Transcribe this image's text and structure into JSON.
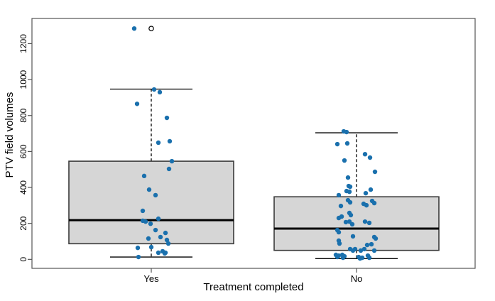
{
  "chart_data": {
    "type": "boxplot",
    "title": "",
    "xlabel": "Treatment completed",
    "ylabel": "PTV field volumes",
    "categories": [
      "Yes",
      "No"
    ],
    "yticks": [
      0,
      200,
      400,
      600,
      800,
      1000,
      1200
    ],
    "ylim": [
      -50,
      1340
    ],
    "grid": false,
    "legend": "none",
    "colors": {
      "point": "#1a70ad",
      "box_fill": "#d6d6d6",
      "box_border": "#3a3a3a",
      "median": "#000000",
      "whisker": "#000000",
      "frame": "#555555",
      "outlier_stroke": "#000000"
    },
    "groups": [
      {
        "label": "Yes",
        "box": {
          "low": 13,
          "q1": 87,
          "median": 218,
          "q3": 546,
          "high": 947
        },
        "outliers": [
          1284
        ],
        "points": [
          [
            -24,
            1284
          ],
          [
            4,
            945
          ],
          [
            12,
            930
          ],
          [
            -20,
            865
          ],
          [
            22,
            787
          ],
          [
            10,
            649
          ],
          [
            26,
            657
          ],
          [
            29,
            546
          ],
          [
            25,
            503
          ],
          [
            -10,
            464
          ],
          [
            -3,
            388
          ],
          [
            6,
            357
          ],
          [
            -12,
            270
          ],
          [
            10,
            226
          ],
          [
            -12,
            215
          ],
          [
            -8,
            210
          ],
          [
            -1,
            198
          ],
          [
            6,
            163
          ],
          [
            20,
            147
          ],
          [
            13,
            124
          ],
          [
            -4,
            116
          ],
          [
            22,
            108
          ],
          [
            24,
            88
          ],
          [
            0,
            68
          ],
          [
            -19,
            64
          ],
          [
            16,
            45
          ],
          [
            10,
            37
          ],
          [
            20,
            37
          ],
          [
            19,
            33
          ],
          [
            -18,
            13
          ]
        ]
      },
      {
        "label": "No",
        "box": {
          "low": 4,
          "q1": 50,
          "median": 171,
          "q3": 348,
          "high": 704
        },
        "outliers": [],
        "points": [
          [
            -18,
            712
          ],
          [
            -14,
            708
          ],
          [
            -27,
            641
          ],
          [
            -13,
            645
          ],
          [
            12,
            585
          ],
          [
            19,
            566
          ],
          [
            -17,
            550
          ],
          [
            26,
            487
          ],
          [
            -12,
            455
          ],
          [
            -11,
            408
          ],
          [
            -9,
            404
          ],
          [
            -14,
            380
          ],
          [
            -10,
            376
          ],
          [
            -25,
            357
          ],
          [
            13,
            368
          ],
          [
            20,
            388
          ],
          [
            22,
            325
          ],
          [
            -12,
            329
          ],
          [
            -9,
            317
          ],
          [
            -22,
            297
          ],
          [
            10,
            309
          ],
          [
            14,
            301
          ],
          [
            25,
            313
          ],
          [
            -10,
            258
          ],
          [
            -8,
            246
          ],
          [
            -25,
            230
          ],
          [
            -21,
            238
          ],
          [
            -15,
            207
          ],
          [
            -10,
            210
          ],
          [
            -6,
            195
          ],
          [
            12,
            210
          ],
          [
            18,
            203
          ],
          [
            -27,
            163
          ],
          [
            -25,
            151
          ],
          [
            -5,
            128
          ],
          [
            25,
            124
          ],
          [
            27,
            116
          ],
          [
            -25,
            104
          ],
          [
            -24,
            88
          ],
          [
            15,
            80
          ],
          [
            21,
            84
          ],
          [
            -9,
            57
          ],
          [
            -5,
            49
          ],
          [
            -2,
            57
          ],
          [
            6,
            49
          ],
          [
            11,
            57
          ],
          [
            25,
            49
          ],
          [
            -29,
            25
          ],
          [
            -27,
            13
          ],
          [
            -25,
            21
          ],
          [
            -20,
            25
          ],
          [
            -19,
            9
          ],
          [
            -17,
            17
          ],
          [
            3,
            13
          ],
          [
            5,
            5
          ],
          [
            8,
            9
          ],
          [
            16,
            21
          ],
          [
            18,
            9
          ]
        ]
      }
    ]
  }
}
